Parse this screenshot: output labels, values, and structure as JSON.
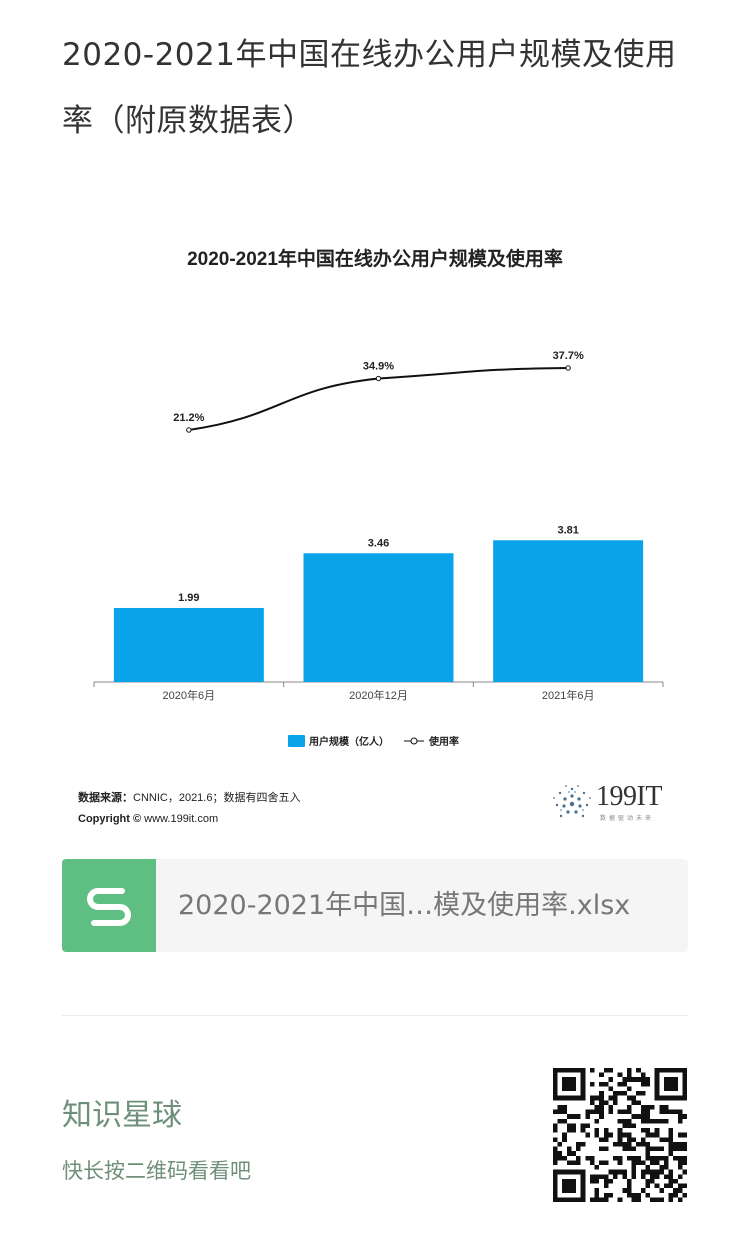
{
  "article": {
    "title": "2020-2021年中国在线办公用户规模及使用率（附原数据表）"
  },
  "chart_data": {
    "type": "bar",
    "title": "2020-2021年中国在线办公用户规模及使用率",
    "categories": [
      "2020年6月",
      "2020年12月",
      "2021年6月"
    ],
    "series": [
      {
        "name": "用户规模（亿人）",
        "kind": "bar",
        "values": [
          1.99,
          3.46,
          3.81
        ],
        "labels": [
          "1.99",
          "3.46",
          "3.81"
        ]
      },
      {
        "name": "使用率",
        "kind": "line",
        "values": [
          21.2,
          34.9,
          37.7
        ],
        "labels": [
          "21.2%",
          "34.9%",
          "37.7%"
        ]
      }
    ],
    "legend_position": "bottom",
    "grid": false,
    "colors": {
      "bar": "#09a3ea",
      "line": "#111111"
    }
  },
  "chart_footer": {
    "source_label": "数据来源：",
    "source_text": "CNNIC，2021.6；数据有四舍五入",
    "copyright_label": "Copyright ©",
    "copyright_text": "www.199it.com",
    "brand_name": "199IT",
    "brand_tagline": "数据驱动未来"
  },
  "attachment": {
    "file_name": "2020-2021年中国…模及使用率.xlsx",
    "icon": "spreadsheet-s-icon",
    "icon_color": "#5fbe81"
  },
  "promo": {
    "title": "知识星球",
    "subtitle": "快长按二维码看看吧",
    "qr_icon": "qr-code-icon"
  }
}
